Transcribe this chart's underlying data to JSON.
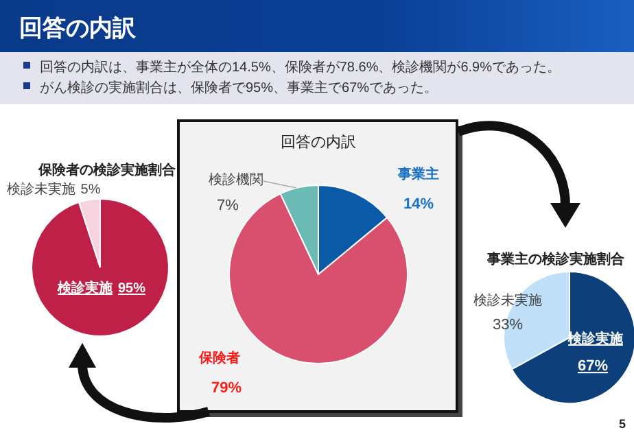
{
  "chart_data": [
    {
      "type": "other",
      "title": "回答の内訳",
      "annotations": [
        "回答の内訳は、事業主が全体の14.5%、保険者が78.6%、検診機関が6.9%であった。",
        "がん検診の実施割合は、保険者で95%、事業主で67%であった。",
        "5"
      ]
    },
    {
      "type": "pie",
      "title": "保険者の検診実施割合",
      "categories": [
        "検診実施",
        "検診未実施"
      ],
      "values": [
        95,
        5
      ],
      "value_labels": [
        "95%",
        "5%"
      ],
      "colors": [
        "#be2047",
        "#f6d3de"
      ]
    },
    {
      "type": "pie",
      "title": "回答の内訳",
      "categories": [
        "事業主",
        "保険者",
        "検診機関"
      ],
      "values": [
        14,
        79,
        7
      ],
      "value_labels": [
        "14%",
        "79%",
        "7%"
      ],
      "colors": [
        "#0a5aa8",
        "#d94f6e",
        "#6bbab5"
      ]
    },
    {
      "type": "pie",
      "title": "事業主の検診実施割合",
      "categories": [
        "検診実施",
        "検診未実施"
      ],
      "values": [
        67,
        33
      ],
      "value_labels": [
        "67%",
        "33%"
      ],
      "colors": [
        "#0d3f7a",
        "#bfe0f8"
      ]
    }
  ]
}
